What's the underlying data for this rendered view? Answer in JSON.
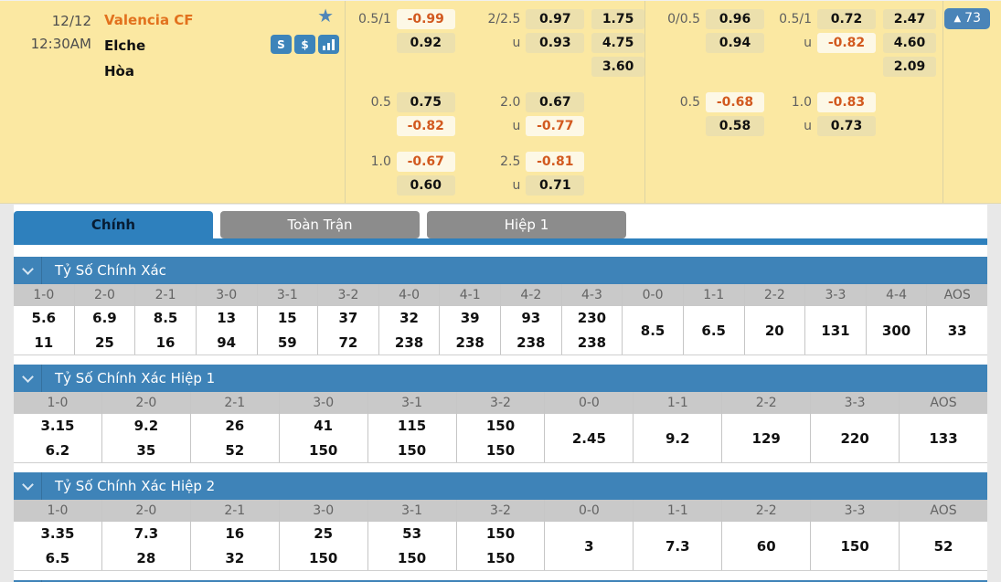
{
  "match_panel": {
    "date": "12/12",
    "time": "12:30AM",
    "home_team": "Valencia CF",
    "away_team": "Elche",
    "draw_label": "Hòa",
    "star_icon": "★",
    "favorite_icon": "▲",
    "favorite_count": "73",
    "icons": [
      {
        "name": "betslip-icon",
        "glyph": "S"
      },
      {
        "name": "dollar-icon",
        "glyph": "$"
      },
      {
        "name": "stats-icon",
        "glyph": ""
      }
    ],
    "colors": {
      "panel_bg": "#fbe8a2",
      "cell_bg": "#ece0ad",
      "cell_highlight_bg": "#fdf8e6",
      "highlight_text": "#d2591f",
      "home_team_text": "#e2711d",
      "accent_blue": "#3e83b8"
    }
  },
  "odds_groups": [
    {
      "blocks": [
        {
          "hdp": {
            "rows": [
              {
                "lbl": "0.5/1",
                "v": "-0.99",
                "hi": true
              },
              {
                "lbl": "",
                "v": "0.92",
                "hi": false
              }
            ]
          },
          "ou": {
            "rows": [
              {
                "lbl": "2/2.5",
                "v": "0.97",
                "hi": false
              },
              {
                "lbl": "u",
                "v": "0.93",
                "hi": false
              }
            ]
          },
          "x12": [
            "1.75",
            "4.75",
            "3.60"
          ]
        },
        {
          "hdp": {
            "rows": [
              {
                "lbl": "0.5",
                "v": "0.75",
                "hi": false
              },
              {
                "lbl": "",
                "v": "-0.82",
                "hi": true
              }
            ]
          },
          "ou": {
            "rows": [
              {
                "lbl": "2.0",
                "v": "0.67",
                "hi": false
              },
              {
                "lbl": "u",
                "v": "-0.77",
                "hi": true
              }
            ]
          },
          "x12": []
        },
        {
          "hdp": {
            "rows": [
              {
                "lbl": "1.0",
                "v": "-0.67",
                "hi": true
              },
              {
                "lbl": "",
                "v": "0.60",
                "hi": false
              }
            ]
          },
          "ou": {
            "rows": [
              {
                "lbl": "2.5",
                "v": "-0.81",
                "hi": true
              },
              {
                "lbl": "u",
                "v": "0.71",
                "hi": false
              }
            ]
          },
          "x12": []
        }
      ]
    },
    {
      "blocks": [
        {
          "hdp": {
            "rows": [
              {
                "lbl": "0/0.5",
                "v": "0.96",
                "hi": false
              },
              {
                "lbl": "",
                "v": "0.94",
                "hi": false
              }
            ]
          },
          "ou": {
            "rows": [
              {
                "lbl": "0.5/1",
                "v": "0.72",
                "hi": false
              },
              {
                "lbl": "u",
                "v": "-0.82",
                "hi": true
              }
            ]
          },
          "x12": [
            "2.47",
            "4.60",
            "2.09"
          ]
        },
        {
          "hdp": {
            "rows": [
              {
                "lbl": "0.5",
                "v": "-0.68",
                "hi": true
              },
              {
                "lbl": "",
                "v": "0.58",
                "hi": false
              }
            ]
          },
          "ou": {
            "rows": [
              {
                "lbl": "1.0",
                "v": "-0.83",
                "hi": true
              },
              {
                "lbl": "u",
                "v": "0.73",
                "hi": false
              }
            ]
          },
          "x12": []
        }
      ]
    }
  ],
  "tabs": [
    {
      "label": "Chính",
      "active": true
    },
    {
      "label": "Toàn Trận",
      "active": false
    },
    {
      "label": "Hiệp 1",
      "active": false
    }
  ],
  "sections": [
    {
      "title": "Tỷ Số Chính Xác",
      "columns": [
        {
          "score": "1-0",
          "values": [
            "5.6",
            "11"
          ]
        },
        {
          "score": "2-0",
          "values": [
            "6.9",
            "25"
          ]
        },
        {
          "score": "2-1",
          "values": [
            "8.5",
            "16"
          ]
        },
        {
          "score": "3-0",
          "values": [
            "13",
            "94"
          ]
        },
        {
          "score": "3-1",
          "values": [
            "15",
            "59"
          ]
        },
        {
          "score": "3-2",
          "values": [
            "37",
            "72"
          ]
        },
        {
          "score": "4-0",
          "values": [
            "32",
            "238"
          ]
        },
        {
          "score": "4-1",
          "values": [
            "39",
            "238"
          ]
        },
        {
          "score": "4-2",
          "values": [
            "93",
            "238"
          ]
        },
        {
          "score": "4-3",
          "values": [
            "230",
            "238"
          ]
        },
        {
          "score": "0-0",
          "values": [
            "8.5"
          ]
        },
        {
          "score": "1-1",
          "values": [
            "6.5"
          ]
        },
        {
          "score": "2-2",
          "values": [
            "20"
          ]
        },
        {
          "score": "3-3",
          "values": [
            "131"
          ]
        },
        {
          "score": "4-4",
          "values": [
            "300"
          ]
        },
        {
          "score": "AOS",
          "values": [
            "33"
          ]
        }
      ]
    },
    {
      "title": "Tỷ Số Chính Xác Hiệp 1",
      "columns": [
        {
          "score": "1-0",
          "values": [
            "3.15",
            "6.2"
          ]
        },
        {
          "score": "2-0",
          "values": [
            "9.2",
            "35"
          ]
        },
        {
          "score": "2-1",
          "values": [
            "26",
            "52"
          ]
        },
        {
          "score": "3-0",
          "values": [
            "41",
            "150"
          ]
        },
        {
          "score": "3-1",
          "values": [
            "115",
            "150"
          ]
        },
        {
          "score": "3-2",
          "values": [
            "150",
            "150"
          ]
        },
        {
          "score": "0-0",
          "values": [
            "2.45"
          ]
        },
        {
          "score": "1-1",
          "values": [
            "9.2"
          ]
        },
        {
          "score": "2-2",
          "values": [
            "129"
          ]
        },
        {
          "score": "3-3",
          "values": [
            "220"
          ]
        },
        {
          "score": "AOS",
          "values": [
            "133"
          ]
        }
      ]
    },
    {
      "title": "Tỷ Số Chính Xác Hiệp 2",
      "columns": [
        {
          "score": "1-0",
          "values": [
            "3.35",
            "6.5"
          ]
        },
        {
          "score": "2-0",
          "values": [
            "7.3",
            "28"
          ]
        },
        {
          "score": "2-1",
          "values": [
            "16",
            "32"
          ]
        },
        {
          "score": "3-0",
          "values": [
            "25",
            "150"
          ]
        },
        {
          "score": "3-1",
          "values": [
            "53",
            "150"
          ]
        },
        {
          "score": "3-2",
          "values": [
            "150",
            "150"
          ]
        },
        {
          "score": "0-0",
          "values": [
            "3"
          ]
        },
        {
          "score": "1-1",
          "values": [
            "7.3"
          ]
        },
        {
          "score": "2-2",
          "values": [
            "60"
          ]
        },
        {
          "score": "3-3",
          "values": [
            "150"
          ]
        },
        {
          "score": "AOS",
          "values": [
            "52"
          ]
        }
      ]
    }
  ]
}
